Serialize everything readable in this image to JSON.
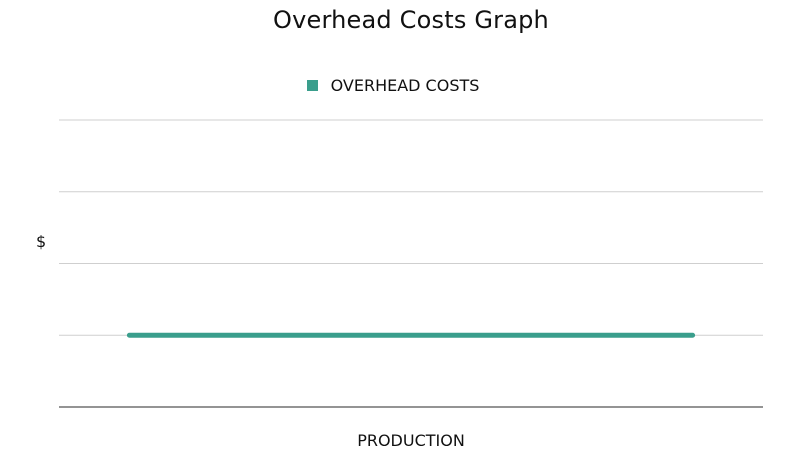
{
  "chart_data": {
    "type": "line",
    "title": "Overhead Costs Graph",
    "xlabel": "PRODUCTION",
    "ylabel": "$",
    "grid": true,
    "legend_position": "top-center",
    "ylim": [
      0,
      4
    ],
    "xlim": [
      0,
      10
    ],
    "series": [
      {
        "name": "OVERHEAD COSTS",
        "color": "#3a9e8c",
        "x": [
          1,
          9
        ],
        "y": [
          1,
          1
        ]
      }
    ]
  }
}
